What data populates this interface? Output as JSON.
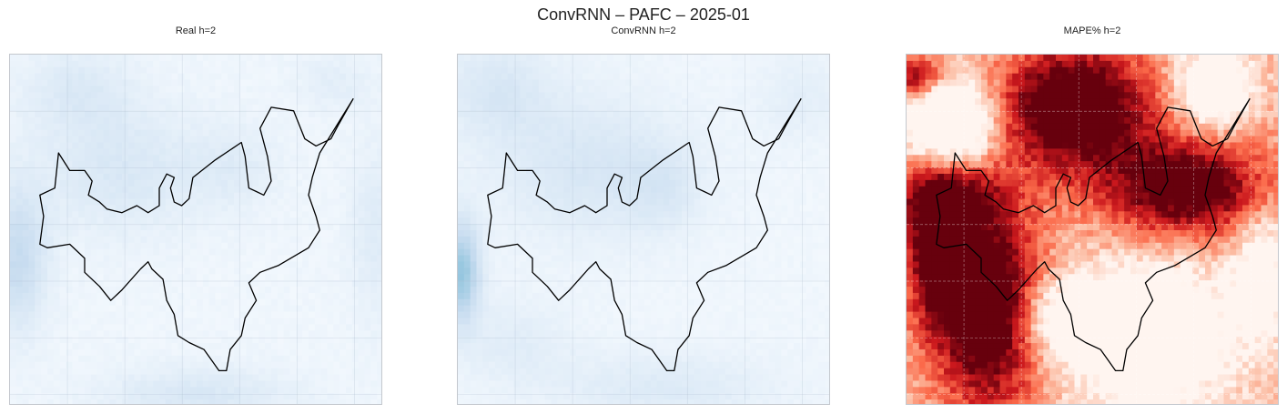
{
  "figure": {
    "title": "ConvRNN – PAFC – 2025-01"
  },
  "chart_data": [
    {
      "type": "heatmap",
      "title": "Real h=2",
      "colormap": "Blues",
      "grid": true,
      "overlay": "region-outline",
      "colors": [
        "#f7fbff",
        "#deebf7",
        "#c6dbef",
        "#9ecae1",
        "#6baed6"
      ]
    },
    {
      "type": "heatmap",
      "title": "ConvRNN h=2",
      "colormap": "Blues",
      "grid": true,
      "overlay": "region-outline",
      "colors": [
        "#f7fbff",
        "#deebf7",
        "#c6dbef",
        "#9ecae1",
        "#6baed6"
      ]
    },
    {
      "type": "heatmap",
      "title": "MAPE% h=2",
      "colormap": "Reds",
      "grid": true,
      "overlay": "region-outline",
      "colors": [
        "#fff5f0",
        "#fcbba1",
        "#fb6a4a",
        "#cb181d",
        "#67000d"
      ]
    }
  ]
}
